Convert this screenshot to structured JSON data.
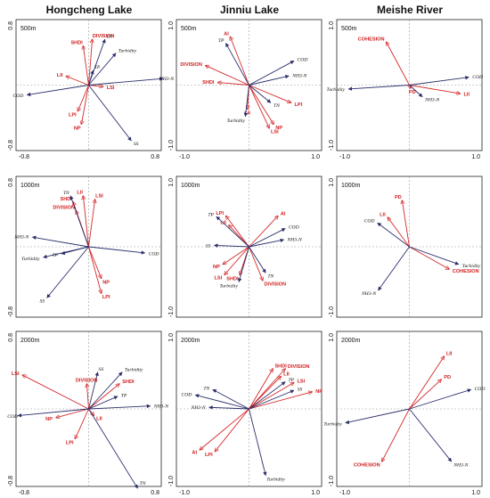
{
  "columns": [
    "Hongcheng Lake",
    "Jinniu Lake",
    "Meishe River"
  ],
  "colors": {
    "env": "#2b2f6b",
    "landscape": "#d42a2a",
    "axis": "#999999",
    "frame": "#222222"
  },
  "chart_data": [
    {
      "type": "scatter",
      "site": "Hongcheng Lake",
      "scale": "500m",
      "xlim": [
        -0.8,
        0.8
      ],
      "ylim": [
        -0.8,
        0.8
      ],
      "xticks": [
        "-0.8",
        "0.8"
      ],
      "yticks": [
        "0.8",
        "-0.8"
      ],
      "env": [
        {
          "name": "TN",
          "x": 0.18,
          "y": 0.56
        },
        {
          "name": "Turbidity",
          "x": 0.3,
          "y": 0.39
        },
        {
          "name": "TP",
          "x": 0.05,
          "y": 0.18
        },
        {
          "name": "NH3-N",
          "x": 0.82,
          "y": 0.08
        },
        {
          "name": "COD",
          "x": -0.68,
          "y": -0.12
        },
        {
          "name": "SS",
          "x": 0.47,
          "y": -0.68
        }
      ],
      "landscape": [
        {
          "name": "SHDI",
          "x": -0.06,
          "y": 0.48
        },
        {
          "name": "DIVISION",
          "x": 0.04,
          "y": 0.56
        },
        {
          "name": "LII",
          "x": -0.25,
          "y": 0.11
        },
        {
          "name": "LSI",
          "x": 0.16,
          "y": -0.02
        },
        {
          "name": "LPI",
          "x": -0.12,
          "y": -0.32
        },
        {
          "name": "NP",
          "x": -0.08,
          "y": -0.48
        }
      ]
    },
    {
      "type": "scatter",
      "site": "Jinniu Lake",
      "scale": "500m",
      "xlim": [
        -1.0,
        1.0
      ],
      "ylim": [
        -1.0,
        1.0
      ],
      "xticks": [
        "-1.0",
        "1.0"
      ],
      "yticks": [
        "1.0",
        "-1.0"
      ],
      "env": [
        {
          "name": "TP",
          "x": -0.32,
          "y": 0.64
        },
        {
          "name": "COD",
          "x": 0.62,
          "y": 0.37
        },
        {
          "name": "NH3-N",
          "x": 0.55,
          "y": 0.14
        },
        {
          "name": "TN",
          "x": 0.3,
          "y": -0.27
        },
        {
          "name": "Turbidity",
          "x": -0.05,
          "y": -0.48
        }
      ],
      "landscape": [
        {
          "name": "AI",
          "x": -0.26,
          "y": 0.74
        },
        {
          "name": "DIVISION",
          "x": -0.6,
          "y": 0.3
        },
        {
          "name": "SHDI",
          "x": -0.43,
          "y": 0.04
        },
        {
          "name": "LII",
          "x": -0.02,
          "y": -0.37
        },
        {
          "name": "LPI",
          "x": 0.58,
          "y": -0.27
        },
        {
          "name": "NP",
          "x": 0.34,
          "y": -0.6
        },
        {
          "name": "LSI",
          "x": 0.28,
          "y": -0.66
        }
      ]
    },
    {
      "type": "scatter",
      "site": "Meishe River",
      "scale": "500m",
      "xlim": [
        -1.0,
        1.0
      ],
      "ylim": [
        -1.0,
        1.0
      ],
      "xticks": [
        "-1.0",
        "1.0"
      ],
      "yticks": [
        "1.0",
        "-1.0"
      ],
      "env": [
        {
          "name": "COD",
          "x": 0.82,
          "y": 0.12
        },
        {
          "name": "Turbidity",
          "x": -0.84,
          "y": -0.06
        },
        {
          "name": "NH3-N",
          "x": 0.18,
          "y": -0.18
        }
      ],
      "landscape": [
        {
          "name": "COHESION",
          "x": -0.32,
          "y": 0.66
        },
        {
          "name": "PD",
          "x": 0.02,
          "y": -0.05
        },
        {
          "name": "LII",
          "x": 0.7,
          "y": -0.13
        }
      ]
    },
    {
      "type": "scatter",
      "site": "Hongcheng Lake",
      "scale": "1000m",
      "xlim": [
        -0.8,
        0.8
      ],
      "ylim": [
        -0.8,
        0.8
      ],
      "xticks": [],
      "yticks": [
        "0.8",
        "-0.8"
      ],
      "env": [
        {
          "name": "TN",
          "x": -0.2,
          "y": 0.58
        },
        {
          "name": "NH3-N",
          "x": -0.62,
          "y": 0.11
        },
        {
          "name": "TP",
          "x": -0.3,
          "y": -0.08
        },
        {
          "name": "Turbidity",
          "x": -0.5,
          "y": -0.12
        },
        {
          "name": "COD",
          "x": 0.62,
          "y": -0.07
        },
        {
          "name": "SS",
          "x": -0.46,
          "y": -0.58
        }
      ],
      "landscape": [
        {
          "name": "SHDI",
          "x": -0.17,
          "y": 0.51
        },
        {
          "name": "LII",
          "x": -0.06,
          "y": 0.58
        },
        {
          "name": "LSI",
          "x": 0.07,
          "y": 0.54
        },
        {
          "name": "DIVISION",
          "x": -0.14,
          "y": 0.41
        },
        {
          "name": "NP",
          "x": 0.14,
          "y": -0.36
        },
        {
          "name": "LPI",
          "x": 0.14,
          "y": -0.53
        }
      ]
    },
    {
      "type": "scatter",
      "site": "Jinniu Lake",
      "scale": "1000m",
      "xlim": [
        -1.0,
        1.0
      ],
      "ylim": [
        -1.0,
        1.0
      ],
      "xticks": [],
      "yticks": [
        "1.0",
        "-1.0"
      ],
      "env": [
        {
          "name": "TP",
          "x": -0.45,
          "y": 0.43
        },
        {
          "name": "COD",
          "x": 0.5,
          "y": 0.26
        },
        {
          "name": "NH3-N",
          "x": 0.48,
          "y": 0.1
        },
        {
          "name": "SS",
          "x": -0.48,
          "y": 0.02
        },
        {
          "name": "TN",
          "x": 0.23,
          "y": -0.37
        },
        {
          "name": "Turbidity",
          "x": -0.14,
          "y": -0.5
        }
      ],
      "landscape": [
        {
          "name": "LPI",
          "x": -0.32,
          "y": 0.44
        },
        {
          "name": "AI",
          "x": 0.4,
          "y": 0.44
        },
        {
          "name": "LII",
          "x": -0.28,
          "y": 0.31
        },
        {
          "name": "NP",
          "x": -0.36,
          "y": -0.25
        },
        {
          "name": "LSI",
          "x": -0.34,
          "y": -0.4
        },
        {
          "name": "SHDI",
          "x": -0.13,
          "y": -0.4
        },
        {
          "name": "DIVISION",
          "x": 0.19,
          "y": -0.48
        }
      ]
    },
    {
      "type": "scatter",
      "site": "Meishe River",
      "scale": "1000m",
      "xlim": [
        -1.0,
        1.0
      ],
      "ylim": [
        -1.0,
        1.0
      ],
      "xticks": [],
      "yticks": [
        "1.0",
        "-1.0"
      ],
      "env": [
        {
          "name": "COD",
          "x": -0.44,
          "y": 0.34
        },
        {
          "name": "Turbidity",
          "x": 0.68,
          "y": -0.25
        },
        {
          "name": "NH3-N",
          "x": -0.43,
          "y": -0.62
        }
      ],
      "landscape": [
        {
          "name": "PD",
          "x": -0.1,
          "y": 0.66
        },
        {
          "name": "LII",
          "x": -0.3,
          "y": 0.42
        },
        {
          "name": "COHESION",
          "x": 0.55,
          "y": -0.32
        }
      ]
    },
    {
      "type": "scatter",
      "site": "Hongcheng Lake",
      "scale": "2000m",
      "xlim": [
        -0.8,
        0.8
      ],
      "ylim": [
        -0.8,
        0.8
      ],
      "xticks": [
        "-0.8",
        "0.8"
      ],
      "yticks": [
        "0.8",
        "-0.8"
      ],
      "env": [
        {
          "name": "SS",
          "x": 0.1,
          "y": 0.38
        },
        {
          "name": "Turbidity",
          "x": 0.37,
          "y": 0.38
        },
        {
          "name": "TP",
          "x": 0.32,
          "y": 0.13
        },
        {
          "name": "NH3-N",
          "x": 0.68,
          "y": 0.03
        },
        {
          "name": "COD",
          "x": -0.78,
          "y": -0.07
        },
        {
          "name": "TN",
          "x": 0.54,
          "y": -0.82
        }
      ],
      "landscape": [
        {
          "name": "LSI",
          "x": -0.73,
          "y": 0.35
        },
        {
          "name": "DIVISION",
          "x": -0.02,
          "y": 0.26
        },
        {
          "name": "SHDI",
          "x": 0.34,
          "y": 0.26
        },
        {
          "name": "NP",
          "x": -0.36,
          "y": -0.09
        },
        {
          "name": "LII",
          "x": 0.06,
          "y": -0.07
        },
        {
          "name": "LPI",
          "x": -0.15,
          "y": -0.31
        }
      ]
    },
    {
      "type": "scatter",
      "site": "Jinniu Lake",
      "scale": "2000m",
      "xlim": [
        -1.0,
        1.0
      ],
      "ylim": [
        -1.0,
        1.0
      ],
      "xticks": [
        "-1.0",
        "1.0"
      ],
      "yticks": [
        "1.0",
        "-1.0"
      ],
      "env": [
        {
          "name": "TN",
          "x": -0.5,
          "y": 0.25
        },
        {
          "name": "COD",
          "x": -0.74,
          "y": 0.18
        },
        {
          "name": "NH3-N",
          "x": -0.55,
          "y": 0.02
        },
        {
          "name": "TP",
          "x": 0.5,
          "y": 0.35
        },
        {
          "name": "SS",
          "x": 0.62,
          "y": 0.24
        },
        {
          "name": "Turbidity",
          "x": 0.23,
          "y": -0.86
        }
      ],
      "landscape": [
        {
          "name": "SHDI",
          "x": 0.33,
          "y": 0.52
        },
        {
          "name": "DIVISION",
          "x": 0.5,
          "y": 0.52
        },
        {
          "name": "LII",
          "x": 0.44,
          "y": 0.42
        },
        {
          "name": "LSI",
          "x": 0.62,
          "y": 0.34
        },
        {
          "name": "NP",
          "x": 0.87,
          "y": 0.22
        },
        {
          "name": "AI",
          "x": -0.68,
          "y": -0.53
        },
        {
          "name": "LPI",
          "x": -0.47,
          "y": -0.55
        }
      ]
    },
    {
      "type": "scatter",
      "site": "Meishe River",
      "scale": "2000m",
      "xlim": [
        -1.0,
        1.0
      ],
      "ylim": [
        -1.0,
        1.0
      ],
      "xticks": [
        "-1.0",
        "1.0"
      ],
      "yticks": [
        "1.0",
        "-1.0"
      ],
      "env": [
        {
          "name": "COD",
          "x": 0.85,
          "y": 0.25
        },
        {
          "name": "Turbidity",
          "x": -0.88,
          "y": -0.18
        },
        {
          "name": "NH3-N",
          "x": 0.58,
          "y": -0.68
        }
      ],
      "landscape": [
        {
          "name": "LII",
          "x": 0.48,
          "y": 0.68
        },
        {
          "name": "PD",
          "x": 0.44,
          "y": 0.38
        },
        {
          "name": "COHESION",
          "x": -0.38,
          "y": -0.68
        }
      ]
    }
  ]
}
